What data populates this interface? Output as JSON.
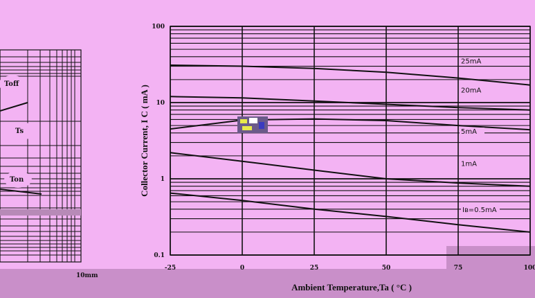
{
  "colors": {
    "background": "#f3b3f3",
    "bottom_band": "#c98fc9",
    "grid": "#111111",
    "curve": "#111111",
    "label_box": "#f3b3f3"
  },
  "left_panel": {
    "labels": [
      "Toff",
      "Ts",
      "Ton"
    ],
    "footer": "10mm"
  },
  "chart_data": {
    "type": "line",
    "xlabel": "Ambient Temperature,Ta ( °C )",
    "ylabel": "Collector Current, I C ( mA )",
    "x_scale": "linear",
    "y_scale": "log",
    "xlim": [
      -25,
      100
    ],
    "ylim": [
      0.1,
      100
    ],
    "x_ticks": [
      "-25",
      "0",
      "25",
      "50",
      "75",
      "100"
    ],
    "y_ticks": [
      "100",
      "10",
      "1",
      "0.1"
    ],
    "grid": true,
    "series": [
      {
        "name": "25mA",
        "x": [
          -25,
          0,
          25,
          50,
          75,
          100
        ],
        "y": [
          31,
          30,
          28,
          25,
          21,
          17
        ]
      },
      {
        "name": "20mA",
        "x": [
          -25,
          0,
          25,
          50,
          75,
          100
        ],
        "y": [
          12,
          11.5,
          10.5,
          9.5,
          8.6,
          8
        ]
      },
      {
        "name": "5mA",
        "x": [
          -25,
          0,
          25,
          50,
          75,
          100
        ],
        "y": [
          4.5,
          5.9,
          6.1,
          5.8,
          5,
          4.4
        ]
      },
      {
        "name": "1mA",
        "x": [
          -25,
          0,
          25,
          50,
          75,
          100
        ],
        "y": [
          2.2,
          1.7,
          1.3,
          1.0,
          0.88,
          0.8
        ]
      },
      {
        "name": "Iʙ=0.5mA",
        "x": [
          -25,
          0,
          25,
          50,
          75,
          100
        ],
        "y": [
          0.65,
          0.52,
          0.4,
          0.32,
          0.25,
          0.2
        ]
      }
    ]
  }
}
